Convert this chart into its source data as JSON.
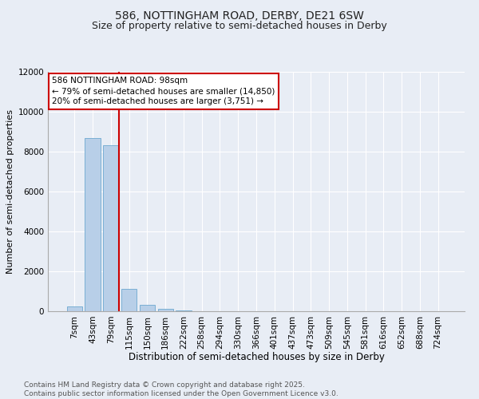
{
  "title1": "586, NOTTINGHAM ROAD, DERBY, DE21 6SW",
  "title2": "Size of property relative to semi-detached houses in Derby",
  "xlabel": "Distribution of semi-detached houses by size in Derby",
  "ylabel": "Number of semi-detached properties",
  "categories": [
    "7sqm",
    "43sqm",
    "79sqm",
    "115sqm",
    "150sqm",
    "186sqm",
    "222sqm",
    "258sqm",
    "294sqm",
    "330sqm",
    "366sqm",
    "401sqm",
    "437sqm",
    "473sqm",
    "509sqm",
    "545sqm",
    "581sqm",
    "616sqm",
    "652sqm",
    "688sqm",
    "724sqm"
  ],
  "values": [
    230,
    8680,
    8340,
    1130,
    330,
    110,
    60,
    0,
    0,
    0,
    0,
    0,
    0,
    0,
    0,
    0,
    0,
    0,
    0,
    0,
    0
  ],
  "bar_color": "#b8cfe8",
  "bar_edge_color": "#7aafd4",
  "red_line_color": "#cc0000",
  "annotation_line1": "586 NOTTINGHAM ROAD: 98sqm",
  "annotation_line2": "← 79% of semi-detached houses are smaller (14,850)",
  "annotation_line3": "20% of semi-detached houses are larger (3,751) →",
  "annotation_box_color": "#ffffff",
  "annotation_box_edge_color": "#cc0000",
  "ylim": [
    0,
    12000
  ],
  "yticks": [
    0,
    2000,
    4000,
    6000,
    8000,
    10000,
    12000
  ],
  "bg_color": "#e8edf5",
  "plot_bg_color": "#e8edf5",
  "grid_color": "#ffffff",
  "footer_text": "Contains HM Land Registry data © Crown copyright and database right 2025.\nContains public sector information licensed under the Open Government Licence v3.0.",
  "title1_fontsize": 10,
  "title2_fontsize": 9,
  "xlabel_fontsize": 8.5,
  "ylabel_fontsize": 8,
  "tick_fontsize": 7.5,
  "annotation_fontsize": 7.5,
  "footer_fontsize": 6.5,
  "red_line_bin": 2,
  "bar_width": 0.85
}
